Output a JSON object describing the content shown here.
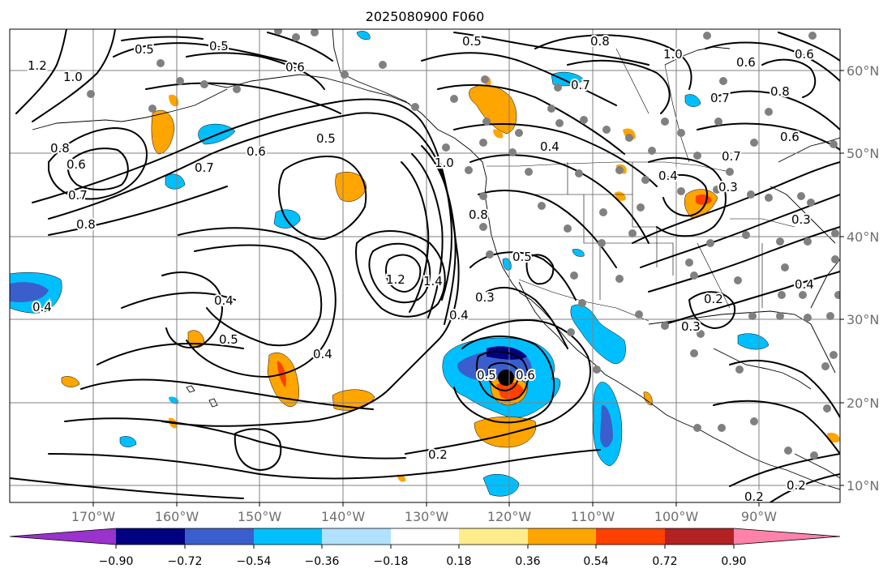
{
  "title": "2025080900 F060",
  "longitude_labels": [
    "170°W",
    "160°W",
    "150°W",
    "140°W",
    "130°W",
    "120°W",
    "110°W",
    "100°W",
    "90°W"
  ],
  "latitude_labels": [
    "60°N",
    "50°N",
    "40°N",
    "30°N",
    "20°N",
    "10°N"
  ],
  "colorbar": {
    "ticks": [
      "−0.90",
      "−0.72",
      "−0.54",
      "−0.36",
      "−0.18",
      "0.18",
      "0.36",
      "0.54",
      "0.72",
      "0.90"
    ],
    "colors": [
      "#9a32cd",
      "#000080",
      "#3a5fcd",
      "#00bfff",
      "#b0e2ff",
      "#ffffff",
      "#ffec8b",
      "#ffa500",
      "#ff4000",
      "#b22222",
      "#ff82ab"
    ]
  },
  "contour_labels": [
    {
      "text": "0.5"
    },
    {
      "text": "0.5"
    },
    {
      "text": "0.6"
    },
    {
      "text": "0.5"
    },
    {
      "text": "0.8"
    },
    {
      "text": "1.0"
    },
    {
      "text": "0.6"
    },
    {
      "text": "0.7"
    },
    {
      "text": "0.8"
    },
    {
      "text": "1.2"
    },
    {
      "text": "1.0"
    },
    {
      "text": "0.8"
    },
    {
      "text": "0.6"
    },
    {
      "text": "0.7"
    },
    {
      "text": "0.8"
    },
    {
      "text": "0.7"
    },
    {
      "text": "0.6"
    },
    {
      "text": "0.5"
    },
    {
      "text": "1.0"
    },
    {
      "text": "1.2"
    },
    {
      "text": "1.4"
    },
    {
      "text": "0.8"
    },
    {
      "text": "0.4"
    },
    {
      "text": "0.5"
    },
    {
      "text": "0.4"
    },
    {
      "text": "0.3"
    },
    {
      "text": "0.4"
    },
    {
      "text": "0.5"
    },
    {
      "text": "0.4"
    },
    {
      "text": "0.5"
    },
    {
      "text": "0.6"
    },
    {
      "text": "0.2"
    },
    {
      "text": "0.4"
    },
    {
      "text": "0.3"
    },
    {
      "text": "0.7"
    },
    {
      "text": "0.6"
    },
    {
      "text": "0.3"
    },
    {
      "text": "0.2"
    },
    {
      "text": "0.3"
    },
    {
      "text": "0.4"
    },
    {
      "text": "0.2"
    },
    {
      "text": "0.2"
    },
    {
      "text": "0.4"
    },
    {
      "text": "0.6"
    },
    {
      "text": "0.7"
    }
  ]
}
